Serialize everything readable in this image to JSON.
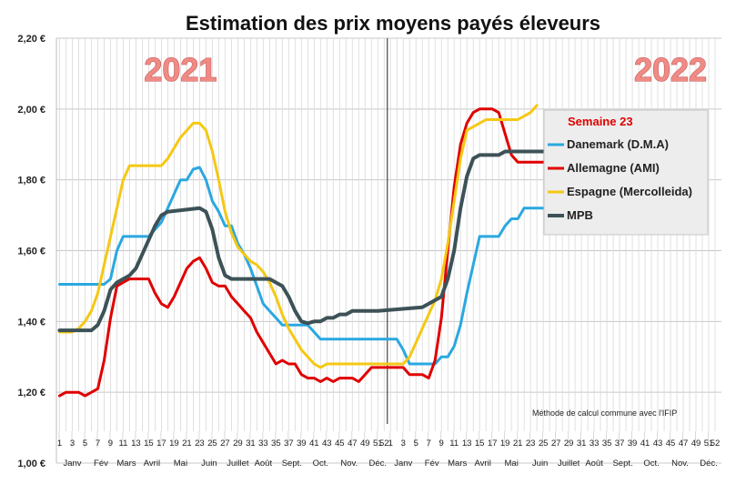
{
  "chart_data": {
    "type": "line",
    "title": "Estimation des prix moyens payés éleveurs",
    "ylim": [
      1.0,
      2.2
    ],
    "yticks": [
      "1,00 €",
      "1,20 €",
      "1,40 €",
      "1,60 €",
      "1,80 €",
      "2,00 €",
      "2,20 €"
    ],
    "ytick_values": [
      1.0,
      1.2,
      1.4,
      1.6,
      1.8,
      2.0,
      2.2
    ],
    "grid": true,
    "x_week_labels": [
      "1",
      "3",
      "5",
      "7",
      "9",
      "11",
      "13",
      "15",
      "17",
      "19",
      "21",
      "23",
      "25",
      "27",
      "29",
      "31",
      "33",
      "35",
      "37",
      "39",
      "41",
      "43",
      "45",
      "47",
      "49",
      "51",
      "52",
      "1",
      "3",
      "5",
      "7",
      "9",
      "11",
      "13",
      "15",
      "17",
      "19",
      "21",
      "23",
      "25",
      "27",
      "29",
      "31",
      "33",
      "35",
      "37",
      "39",
      "41",
      "43",
      "45",
      "47",
      "49",
      "51",
      "52"
    ],
    "x_week_positions": [
      1,
      3,
      5,
      7,
      9,
      11,
      13,
      15,
      17,
      19,
      21,
      23,
      25,
      27,
      29,
      31,
      33,
      35,
      37,
      39,
      41,
      43,
      45,
      47,
      49,
      51,
      52,
      53,
      55,
      57,
      59,
      61,
      63,
      65,
      67,
      69,
      71,
      73,
      75,
      77,
      79,
      81,
      83,
      85,
      87,
      89,
      91,
      93,
      95,
      97,
      99,
      101,
      103,
      104
    ],
    "month_labels": [
      "Janv",
      "Fév",
      "Mars",
      "Avril",
      "Mai",
      "Juin",
      "Juillet",
      "Août",
      "Sept.",
      "Oct.",
      "Nov.",
      "Déc.",
      "Janv",
      "Fév",
      "Mars",
      "Avril",
      "Mai",
      "Juin",
      "Juillet",
      "Août",
      "Sept.",
      "Oct.",
      "Nov.",
      "Déc."
    ],
    "month_positions": [
      3,
      7.5,
      11.5,
      15.5,
      20,
      24.5,
      29,
      33,
      37.5,
      42,
      46.5,
      51,
      55,
      59.5,
      63.5,
      67.5,
      72,
      76.5,
      81,
      85,
      89.5,
      94,
      98.5,
      103
    ],
    "year_labels": [
      {
        "text": "2021",
        "x": 20
      },
      {
        "text": "2022",
        "x": 97
      }
    ],
    "year_divider_x": 52.5,
    "legend": {
      "header": "Semaine 23",
      "placement": "right",
      "entries": [
        "Danemark (D.M.A)",
        "Allemagne (AMI)",
        "Espagne (Mercolleida)",
        "MPB"
      ]
    },
    "annotation": "Méthode de calcul commune avec l'IFIP",
    "series": [
      {
        "name": "Danemark (D.M.A)",
        "color": "#2aa8e0",
        "width": 3,
        "points": [
          [
            1,
            1.505
          ],
          [
            8,
            1.505
          ],
          [
            9,
            1.52
          ],
          [
            10,
            1.6
          ],
          [
            11,
            1.64
          ],
          [
            15,
            1.64
          ],
          [
            16,
            1.66
          ],
          [
            17,
            1.68
          ],
          [
            18,
            1.72
          ],
          [
            19,
            1.76
          ],
          [
            20,
            1.8
          ],
          [
            21,
            1.8
          ],
          [
            22,
            1.83
          ],
          [
            23,
            1.835
          ],
          [
            24,
            1.8
          ],
          [
            25,
            1.74
          ],
          [
            26,
            1.71
          ],
          [
            27,
            1.67
          ],
          [
            28,
            1.67
          ],
          [
            29,
            1.62
          ],
          [
            30,
            1.59
          ],
          [
            31,
            1.55
          ],
          [
            32,
            1.5
          ],
          [
            33,
            1.45
          ],
          [
            34,
            1.43
          ],
          [
            35,
            1.41
          ],
          [
            36,
            1.39
          ],
          [
            40,
            1.39
          ],
          [
            41,
            1.37
          ],
          [
            42,
            1.35
          ],
          [
            54,
            1.35
          ],
          [
            55,
            1.32
          ],
          [
            56,
            1.28
          ],
          [
            60,
            1.28
          ],
          [
            61,
            1.3
          ],
          [
            62,
            1.3
          ],
          [
            63,
            1.33
          ],
          [
            64,
            1.39
          ],
          [
            65,
            1.48
          ],
          [
            66,
            1.56
          ],
          [
            67,
            1.64
          ],
          [
            70,
            1.64
          ],
          [
            71,
            1.67
          ],
          [
            72,
            1.69
          ],
          [
            73,
            1.69
          ],
          [
            74,
            1.72
          ],
          [
            77,
            1.72
          ]
        ]
      },
      {
        "name": "Allemagne (AMI)",
        "color": "#e00000",
        "width": 3,
        "points": [
          [
            1,
            1.19
          ],
          [
            2,
            1.2
          ],
          [
            4,
            1.2
          ],
          [
            5,
            1.19
          ],
          [
            6,
            1.2
          ],
          [
            7,
            1.21
          ],
          [
            8,
            1.29
          ],
          [
            9,
            1.41
          ],
          [
            10,
            1.5
          ],
          [
            11,
            1.51
          ],
          [
            12,
            1.52
          ],
          [
            15,
            1.52
          ],
          [
            16,
            1.48
          ],
          [
            17,
            1.45
          ],
          [
            18,
            1.44
          ],
          [
            19,
            1.47
          ],
          [
            20,
            1.51
          ],
          [
            21,
            1.55
          ],
          [
            22,
            1.57
          ],
          [
            23,
            1.58
          ],
          [
            24,
            1.55
          ],
          [
            25,
            1.51
          ],
          [
            26,
            1.5
          ],
          [
            27,
            1.5
          ],
          [
            28,
            1.47
          ],
          [
            29,
            1.45
          ],
          [
            30,
            1.43
          ],
          [
            31,
            1.41
          ],
          [
            32,
            1.37
          ],
          [
            33,
            1.34
          ],
          [
            34,
            1.31
          ],
          [
            35,
            1.28
          ],
          [
            36,
            1.29
          ],
          [
            37,
            1.28
          ],
          [
            38,
            1.28
          ],
          [
            39,
            1.25
          ],
          [
            40,
            1.24
          ],
          [
            41,
            1.24
          ],
          [
            42,
            1.23
          ],
          [
            43,
            1.24
          ],
          [
            44,
            1.23
          ],
          [
            45,
            1.24
          ],
          [
            47,
            1.24
          ],
          [
            48,
            1.23
          ],
          [
            49,
            1.25
          ],
          [
            50,
            1.27
          ],
          [
            55,
            1.27
          ],
          [
            56,
            1.25
          ],
          [
            58,
            1.25
          ],
          [
            59,
            1.24
          ],
          [
            60,
            1.29
          ],
          [
            61,
            1.41
          ],
          [
            62,
            1.6
          ],
          [
            63,
            1.78
          ],
          [
            64,
            1.9
          ],
          [
            65,
            1.96
          ],
          [
            66,
            1.99
          ],
          [
            67,
            2.0
          ],
          [
            69,
            2.0
          ],
          [
            70,
            1.99
          ],
          [
            71,
            1.93
          ],
          [
            72,
            1.87
          ],
          [
            73,
            1.85
          ],
          [
            77,
            1.85
          ]
        ]
      },
      {
        "name": "Espagne (Mercolleida)",
        "color": "#f5c814",
        "width": 3,
        "points": [
          [
            1,
            1.37
          ],
          [
            3,
            1.37
          ],
          [
            4,
            1.38
          ],
          [
            5,
            1.4
          ],
          [
            6,
            1.43
          ],
          [
            7,
            1.48
          ],
          [
            8,
            1.56
          ],
          [
            9,
            1.64
          ],
          [
            10,
            1.72
          ],
          [
            11,
            1.8
          ],
          [
            12,
            1.84
          ],
          [
            17,
            1.84
          ],
          [
            18,
            1.86
          ],
          [
            19,
            1.89
          ],
          [
            20,
            1.92
          ],
          [
            21,
            1.94
          ],
          [
            22,
            1.96
          ],
          [
            23,
            1.96
          ],
          [
            24,
            1.94
          ],
          [
            25,
            1.88
          ],
          [
            26,
            1.8
          ],
          [
            27,
            1.71
          ],
          [
            28,
            1.65
          ],
          [
            29,
            1.61
          ],
          [
            30,
            1.59
          ],
          [
            31,
            1.57
          ],
          [
            32,
            1.56
          ],
          [
            33,
            1.54
          ],
          [
            34,
            1.51
          ],
          [
            35,
            1.47
          ],
          [
            36,
            1.42
          ],
          [
            37,
            1.38
          ],
          [
            38,
            1.35
          ],
          [
            39,
            1.32
          ],
          [
            40,
            1.3
          ],
          [
            41,
            1.28
          ],
          [
            42,
            1.27
          ],
          [
            43,
            1.28
          ],
          [
            55,
            1.28
          ],
          [
            56,
            1.3
          ],
          [
            57,
            1.34
          ],
          [
            58,
            1.38
          ],
          [
            59,
            1.42
          ],
          [
            60,
            1.46
          ],
          [
            61,
            1.52
          ],
          [
            62,
            1.62
          ],
          [
            63,
            1.74
          ],
          [
            64,
            1.86
          ],
          [
            65,
            1.94
          ],
          [
            66,
            1.95
          ],
          [
            67,
            1.96
          ],
          [
            68,
            1.97
          ],
          [
            73,
            1.97
          ],
          [
            74,
            1.98
          ],
          [
            75,
            1.99
          ],
          [
            76,
            2.01
          ]
        ]
      },
      {
        "name": "MPB",
        "color": "#3d5257",
        "width": 4,
        "points": [
          [
            1,
            1.375
          ],
          [
            6,
            1.375
          ],
          [
            7,
            1.39
          ],
          [
            8,
            1.43
          ],
          [
            9,
            1.49
          ],
          [
            10,
            1.51
          ],
          [
            11,
            1.52
          ],
          [
            12,
            1.53
          ],
          [
            13,
            1.55
          ],
          [
            14,
            1.59
          ],
          [
            15,
            1.63
          ],
          [
            16,
            1.67
          ],
          [
            17,
            1.7
          ],
          [
            18,
            1.71
          ],
          [
            23,
            1.72
          ],
          [
            24,
            1.71
          ],
          [
            25,
            1.66
          ],
          [
            26,
            1.58
          ],
          [
            27,
            1.53
          ],
          [
            28,
            1.52
          ],
          [
            34,
            1.52
          ],
          [
            35,
            1.51
          ],
          [
            36,
            1.5
          ],
          [
            37,
            1.47
          ],
          [
            38,
            1.43
          ],
          [
            39,
            1.4
          ],
          [
            40,
            1.395
          ],
          [
            41,
            1.4
          ],
          [
            42,
            1.4
          ],
          [
            43,
            1.41
          ],
          [
            44,
            1.41
          ],
          [
            45,
            1.42
          ],
          [
            46,
            1.42
          ],
          [
            47,
            1.43
          ],
          [
            50,
            1.43
          ],
          [
            51,
            1.43
          ],
          [
            58,
            1.44
          ],
          [
            59,
            1.45
          ],
          [
            60,
            1.46
          ],
          [
            61,
            1.47
          ],
          [
            62,
            1.52
          ],
          [
            63,
            1.6
          ],
          [
            64,
            1.72
          ],
          [
            65,
            1.81
          ],
          [
            66,
            1.86
          ],
          [
            67,
            1.87
          ],
          [
            70,
            1.87
          ],
          [
            71,
            1.88
          ],
          [
            72,
            1.88
          ],
          [
            77,
            1.88
          ]
        ]
      }
    ]
  }
}
